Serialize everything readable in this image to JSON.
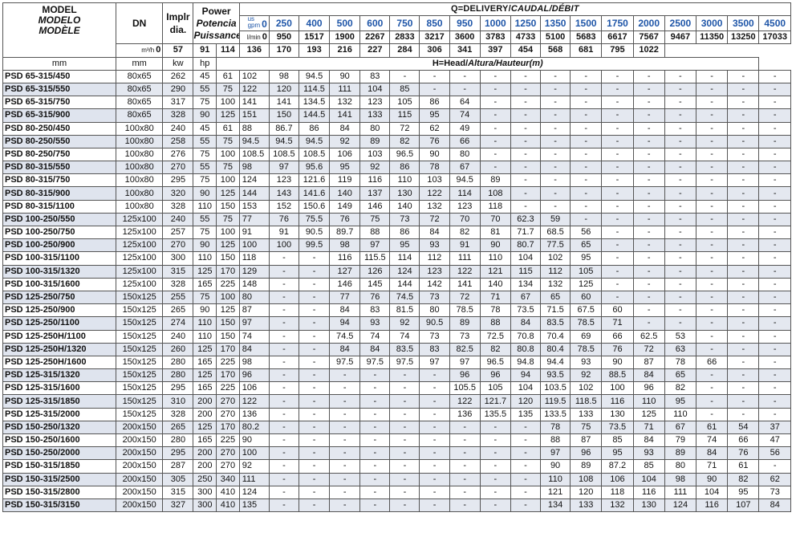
{
  "header": {
    "model_lines": [
      "MODEL",
      "MODELO",
      "MODÈLE"
    ],
    "dn_label": "DN",
    "dn_unit": "mm",
    "impeller_lines": [
      "Implr",
      "dia."
    ],
    "impeller_unit": "mm",
    "power_lines": [
      "Power",
      "Potencia",
      "Puissance"
    ],
    "kw_label": "kw",
    "hp_label": "hp",
    "delivery_title": "Q=DELIVERY/",
    "delivery_title_italic": "CAUDAL/DÉBIT",
    "head_title": "H=Head/",
    "head_title_italic": "Altura/Hauteur",
    "head_unit": "(m)",
    "gpm_label_top": "us",
    "gpm_label_bottom": "gpm",
    "lmin_label": "l/min",
    "m3h_label": "m³/h",
    "gpm_values": [
      "0",
      "250",
      "400",
      "500",
      "600",
      "750",
      "850",
      "950",
      "1000",
      "1250",
      "1350",
      "1500",
      "1750",
      "2000",
      "2500",
      "3000",
      "3500",
      "4500"
    ],
    "lmin_values": [
      "0",
      "950",
      "1517",
      "1900",
      "2267",
      "2833",
      "3217",
      "3600",
      "3783",
      "4733",
      "5100",
      "5683",
      "6617",
      "7567",
      "9467",
      "11350",
      "13250",
      "17033"
    ],
    "m3h_values": [
      "0",
      "57",
      "91",
      "114",
      "136",
      "170",
      "193",
      "216",
      "227",
      "284",
      "306",
      "341",
      "397",
      "454",
      "568",
      "681",
      "795",
      "1022"
    ]
  },
  "rows": [
    {
      "model": "PSD 65-315/450",
      "dn": "80x65",
      "imp": "262",
      "kw": "45",
      "hp": "61",
      "h": [
        "102",
        "98",
        "94.5",
        "90",
        "83",
        "-",
        "-",
        "-",
        "-",
        "-",
        "-",
        "-",
        "-",
        "-",
        "-",
        "-",
        "-",
        "-"
      ]
    },
    {
      "model": "PSD 65-315/550",
      "dn": "80x65",
      "imp": "290",
      "kw": "55",
      "hp": "75",
      "h": [
        "122",
        "120",
        "114.5",
        "111",
        "104",
        "85",
        "-",
        "-",
        "-",
        "-",
        "-",
        "-",
        "-",
        "-",
        "-",
        "-",
        "-",
        "-"
      ]
    },
    {
      "model": "PSD 65-315/750",
      "dn": "80x65",
      "imp": "317",
      "kw": "75",
      "hp": "100",
      "h": [
        "141",
        "141",
        "134.5",
        "132",
        "123",
        "105",
        "86",
        "64",
        "-",
        "-",
        "-",
        "-",
        "-",
        "-",
        "-",
        "-",
        "-",
        "-"
      ]
    },
    {
      "model": "PSD 65-315/900",
      "dn": "80x65",
      "imp": "328",
      "kw": "90",
      "hp": "125",
      "h": [
        "151",
        "150",
        "144.5",
        "141",
        "133",
        "115",
        "95",
        "74",
        "-",
        "-",
        "-",
        "-",
        "-",
        "-",
        "-",
        "-",
        "-",
        "-"
      ]
    },
    {
      "model": "PSD 80-250/450",
      "dn": "100x80",
      "imp": "240",
      "kw": "45",
      "hp": "61",
      "h": [
        "88",
        "86.7",
        "86",
        "84",
        "80",
        "72",
        "62",
        "49",
        "-",
        "-",
        "-",
        "-",
        "-",
        "-",
        "-",
        "-",
        "-",
        "-"
      ]
    },
    {
      "model": "PSD 80-250/550",
      "dn": "100x80",
      "imp": "258",
      "kw": "55",
      "hp": "75",
      "h": [
        "94.5",
        "94.5",
        "94.5",
        "92",
        "89",
        "82",
        "76",
        "66",
        "-",
        "-",
        "-",
        "-",
        "-",
        "-",
        "-",
        "-",
        "-",
        "-"
      ]
    },
    {
      "model": "PSD 80-250/750",
      "dn": "100x80",
      "imp": "276",
      "kw": "75",
      "hp": "100",
      "h": [
        "108.5",
        "108.5",
        "108.5",
        "106",
        "103",
        "96.5",
        "90",
        "80",
        "-",
        "-",
        "-",
        "-",
        "-",
        "-",
        "-",
        "-",
        "-",
        "-"
      ]
    },
    {
      "model": "PSD 80-315/550",
      "dn": "100x80",
      "imp": "270",
      "kw": "55",
      "hp": "75",
      "h": [
        "98",
        "97",
        "95.6",
        "95",
        "92",
        "86",
        "78",
        "67",
        "-",
        "-",
        "-",
        "-",
        "-",
        "-",
        "-",
        "-",
        "-",
        "-"
      ]
    },
    {
      "model": "PSD 80-315/750",
      "dn": "100x80",
      "imp": "295",
      "kw": "75",
      "hp": "100",
      "h": [
        "124",
        "123",
        "121.6",
        "119",
        "116",
        "110",
        "103",
        "94.5",
        "89",
        "-",
        "-",
        "-",
        "-",
        "-",
        "-",
        "-",
        "-",
        "-"
      ]
    },
    {
      "model": "PSD 80-315/900",
      "dn": "100x80",
      "imp": "320",
      "kw": "90",
      "hp": "125",
      "h": [
        "144",
        "143",
        "141.6",
        "140",
        "137",
        "130",
        "122",
        "114",
        "108",
        "-",
        "-",
        "-",
        "-",
        "-",
        "-",
        "-",
        "-",
        "-"
      ]
    },
    {
      "model": "PSD 80-315/1100",
      "dn": "100x80",
      "imp": "328",
      "kw": "110",
      "hp": "150",
      "h": [
        "153",
        "152",
        "150.6",
        "149",
        "146",
        "140",
        "132",
        "123",
        "118",
        "-",
        "-",
        "-",
        "-",
        "-",
        "-",
        "-",
        "-",
        "-"
      ]
    },
    {
      "model": "PSD 100-250/550",
      "dn": "125x100",
      "imp": "240",
      "kw": "55",
      "hp": "75",
      "h": [
        "77",
        "76",
        "75.5",
        "76",
        "75",
        "73",
        "72",
        "70",
        "70",
        "62.3",
        "59",
        "-",
        "-",
        "-",
        "-",
        "-",
        "-",
        "-"
      ]
    },
    {
      "model": "PSD 100-250/750",
      "dn": "125x100",
      "imp": "257",
      "kw": "75",
      "hp": "100",
      "h": [
        "91",
        "91",
        "90.5",
        "89.7",
        "88",
        "86",
        "84",
        "82",
        "81",
        "71.7",
        "68.5",
        "56",
        "-",
        "-",
        "-",
        "-",
        "-",
        "-"
      ]
    },
    {
      "model": "PSD 100-250/900",
      "dn": "125x100",
      "imp": "270",
      "kw": "90",
      "hp": "125",
      "h": [
        "100",
        "100",
        "99.5",
        "98",
        "97",
        "95",
        "93",
        "91",
        "90",
        "80.7",
        "77.5",
        "65",
        "-",
        "-",
        "-",
        "-",
        "-",
        "-"
      ]
    },
    {
      "model": "PSD 100-315/1100",
      "dn": "125x100",
      "imp": "300",
      "kw": "110",
      "hp": "150",
      "h": [
        "118",
        "-",
        "-",
        "116",
        "115.5",
        "114",
        "112",
        "111",
        "110",
        "104",
        "102",
        "95",
        "-",
        "-",
        "-",
        "-",
        "-",
        "-"
      ]
    },
    {
      "model": "PSD 100-315/1320",
      "dn": "125x100",
      "imp": "315",
      "kw": "125",
      "hp": "170",
      "h": [
        "129",
        "-",
        "-",
        "127",
        "126",
        "124",
        "123",
        "122",
        "121",
        "115",
        "112",
        "105",
        "-",
        "-",
        "-",
        "-",
        "-",
        "-"
      ]
    },
    {
      "model": "PSD 100-315/1600",
      "dn": "125x100",
      "imp": "328",
      "kw": "165",
      "hp": "225",
      "h": [
        "148",
        "-",
        "-",
        "146",
        "145",
        "144",
        "142",
        "141",
        "140",
        "134",
        "132",
        "125",
        "-",
        "-",
        "-",
        "-",
        "-",
        "-"
      ]
    },
    {
      "model": "PSD 125-250/750",
      "dn": "150x125",
      "imp": "255",
      "kw": "75",
      "hp": "100",
      "h": [
        "80",
        "-",
        "-",
        "77",
        "76",
        "74.5",
        "73",
        "72",
        "71",
        "67",
        "65",
        "60",
        "-",
        "-",
        "-",
        "-",
        "-",
        "-"
      ]
    },
    {
      "model": "PSD 125-250/900",
      "dn": "150x125",
      "imp": "265",
      "kw": "90",
      "hp": "125",
      "h": [
        "87",
        "-",
        "-",
        "84",
        "83",
        "81.5",
        "80",
        "78.5",
        "78",
        "73.5",
        "71.5",
        "67.5",
        "60",
        "-",
        "-",
        "-",
        "-",
        "-"
      ]
    },
    {
      "model": "PSD 125-250/1100",
      "dn": "150x125",
      "imp": "274",
      "kw": "110",
      "hp": "150",
      "h": [
        "97",
        "-",
        "-",
        "94",
        "93",
        "92",
        "90.5",
        "89",
        "88",
        "84",
        "83.5",
        "78.5",
        "71",
        "-",
        "-",
        "-",
        "-",
        "-"
      ]
    },
    {
      "model": "PSD 125-250H/1100",
      "dn": "150x125",
      "imp": "240",
      "kw": "110",
      "hp": "150",
      "h": [
        "74",
        "-",
        "-",
        "74.5",
        "74",
        "74",
        "73",
        "73",
        "72.5",
        "70.8",
        "70.4",
        "69",
        "66",
        "62.5",
        "53",
        "-",
        "-",
        "-"
      ]
    },
    {
      "model": "PSD 125-250H/1320",
      "dn": "150x125",
      "imp": "260",
      "kw": "125",
      "hp": "170",
      "h": [
        "84",
        "-",
        "-",
        "84",
        "84",
        "83.5",
        "83",
        "82.5",
        "82",
        "80.8",
        "80.4",
        "78.5",
        "76",
        "72",
        "63",
        "-",
        "-",
        "-"
      ]
    },
    {
      "model": "PSD 125-250H/1600",
      "dn": "150x125",
      "imp": "280",
      "kw": "165",
      "hp": "225",
      "h": [
        "98",
        "-",
        "-",
        "97.5",
        "97.5",
        "97.5",
        "97",
        "97",
        "96.5",
        "94.8",
        "94.4",
        "93",
        "90",
        "87",
        "78",
        "66",
        "-",
        "-"
      ]
    },
    {
      "model": "PSD 125-315/1320",
      "dn": "150x125",
      "imp": "280",
      "kw": "125",
      "hp": "170",
      "h": [
        "96",
        "-",
        "-",
        "-",
        "-",
        "-",
        "-",
        "96",
        "96",
        "94",
        "93.5",
        "92",
        "88.5",
        "84",
        "65",
        "-",
        "-",
        "-"
      ]
    },
    {
      "model": "PSD 125-315/1600",
      "dn": "150x125",
      "imp": "295",
      "kw": "165",
      "hp": "225",
      "h": [
        "106",
        "-",
        "-",
        "-",
        "-",
        "-",
        "-",
        "105.5",
        "105",
        "104",
        "103.5",
        "102",
        "100",
        "96",
        "82",
        "-",
        "-",
        "-"
      ]
    },
    {
      "model": "PSD 125-315/1850",
      "dn": "150x125",
      "imp": "310",
      "kw": "200",
      "hp": "270",
      "h": [
        "122",
        "-",
        "-",
        "-",
        "-",
        "-",
        "-",
        "122",
        "121.7",
        "120",
        "119.5",
        "118.5",
        "116",
        "110",
        "95",
        "-",
        "-",
        "-"
      ]
    },
    {
      "model": "PSD 125-315/2000",
      "dn": "150x125",
      "imp": "328",
      "kw": "200",
      "hp": "270",
      "h": [
        "136",
        "-",
        "-",
        "-",
        "-",
        "-",
        "-",
        "136",
        "135.5",
        "135",
        "133.5",
        "133",
        "130",
        "125",
        "110",
        "-",
        "-",
        "-"
      ]
    },
    {
      "model": "PSD 150-250/1320",
      "dn": "200x150",
      "imp": "265",
      "kw": "125",
      "hp": "170",
      "h": [
        "80.2",
        "-",
        "-",
        "-",
        "-",
        "-",
        "-",
        "-",
        "-",
        "-",
        "78",
        "75",
        "73.5",
        "71",
        "67",
        "61",
        "54",
        "37"
      ]
    },
    {
      "model": "PSD 150-250/1600",
      "dn": "200x150",
      "imp": "280",
      "kw": "165",
      "hp": "225",
      "h": [
        "90",
        "-",
        "-",
        "-",
        "-",
        "-",
        "-",
        "-",
        "-",
        "-",
        "88",
        "87",
        "85",
        "84",
        "79",
        "74",
        "66",
        "47"
      ]
    },
    {
      "model": "PSD 150-250/2000",
      "dn": "200x150",
      "imp": "295",
      "kw": "200",
      "hp": "270",
      "h": [
        "100",
        "-",
        "-",
        "-",
        "-",
        "-",
        "-",
        "-",
        "-",
        "-",
        "97",
        "96",
        "95",
        "93",
        "89",
        "84",
        "76",
        "56"
      ]
    },
    {
      "model": "PSD 150-315/1850",
      "dn": "200x150",
      "imp": "287",
      "kw": "200",
      "hp": "270",
      "h": [
        "92",
        "-",
        "-",
        "-",
        "-",
        "-",
        "-",
        "-",
        "-",
        "-",
        "90",
        "89",
        "87.2",
        "85",
        "80",
        "71",
        "61",
        "-"
      ]
    },
    {
      "model": "PSD 150-315/2500",
      "dn": "200x150",
      "imp": "305",
      "kw": "250",
      "hp": "340",
      "h": [
        "111",
        "-",
        "-",
        "-",
        "-",
        "-",
        "-",
        "-",
        "-",
        "-",
        "110",
        "108",
        "106",
        "104",
        "98",
        "90",
        "82",
        "62"
      ]
    },
    {
      "model": "PSD 150-315/2800",
      "dn": "200x150",
      "imp": "315",
      "kw": "300",
      "hp": "410",
      "h": [
        "124",
        "-",
        "-",
        "-",
        "-",
        "-",
        "-",
        "-",
        "-",
        "-",
        "121",
        "120",
        "118",
        "116",
        "111",
        "104",
        "95",
        "73"
      ]
    },
    {
      "model": "PSD 150-315/3150",
      "dn": "200x150",
      "imp": "327",
      "kw": "300",
      "hp": "410",
      "h": [
        "135",
        "-",
        "-",
        "-",
        "-",
        "-",
        "-",
        "-",
        "-",
        "-",
        "134",
        "133",
        "132",
        "130",
        "124",
        "116",
        "107",
        "84"
      ]
    }
  ],
  "colors": {
    "accent_blue": "#1f56a8",
    "row_shade": "#e4e8f0",
    "border": "#555555"
  }
}
